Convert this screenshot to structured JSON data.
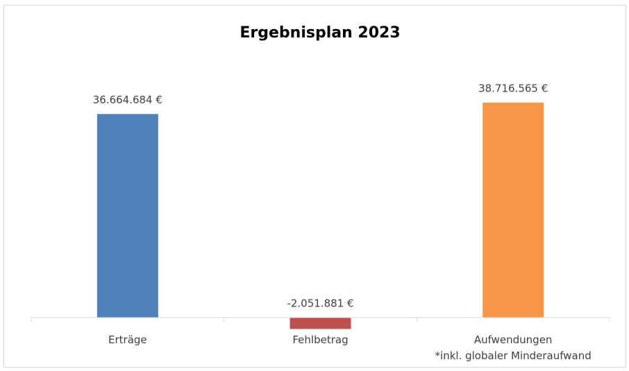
{
  "chart_data": {
    "type": "bar",
    "title": "Ergebnisplan 2023",
    "categories": [
      "Erträge",
      "Fehlbetrag",
      "Aufwendungen\n*inkl. globaler Minderaufwand"
    ],
    "values": [
      36664684,
      -2051881,
      38716565
    ],
    "value_labels": [
      "36.664.684 €",
      "-2.051.881 €",
      "38.716.565 €"
    ],
    "colors": [
      "#4f81bd",
      "#c0504d",
      "#f79646"
    ]
  }
}
